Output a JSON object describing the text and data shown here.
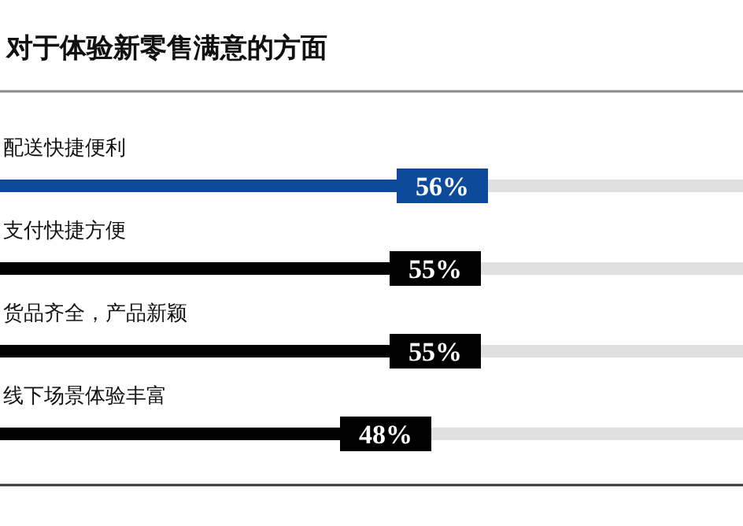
{
  "chart_data": {
    "type": "bar",
    "orientation": "horizontal",
    "title": "对于体验新零售满意的方面",
    "categories": [
      "配送快捷便利",
      "支付快捷方便",
      "货品齐全，产品新颖",
      "线下场景体验丰富"
    ],
    "colors": [
      "#0d4a9b",
      "#000000",
      "#000000",
      "#000000"
    ],
    "values": [
      56,
      55,
      55,
      48
    ],
    "value_labels": [
      "56%",
      "55%",
      "55%",
      "48%"
    ]
  }
}
